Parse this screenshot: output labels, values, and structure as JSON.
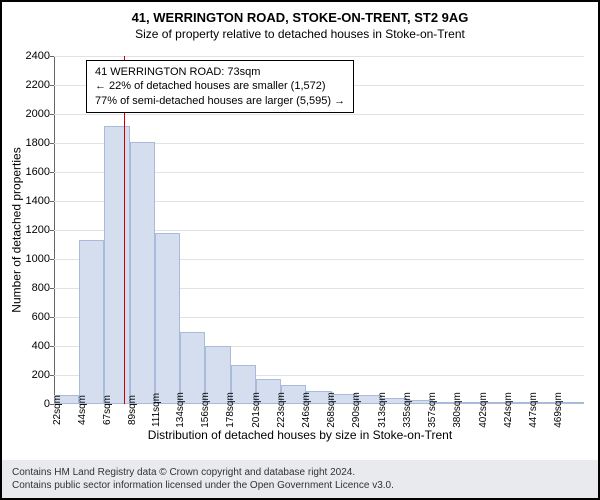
{
  "title_line1": "41, WERRINGTON ROAD, STOKE-ON-TRENT, ST2 9AG",
  "title_line2": "Size of property relative to detached houses in Stoke-on-Trent",
  "xaxis_label": "Distribution of detached houses by size in Stoke-on-Trent",
  "yaxis_label": "Number of detached properties",
  "footer_line1": "Contains HM Land Registry data © Crown copyright and database right 2024.",
  "footer_line2": "Contains public sector information licensed under the Open Government Licence v3.0.",
  "info_lines": [
    "41 WERRINGTON ROAD: 73sqm",
    "← 22% of detached houses are smaller (1,572)",
    "77% of semi-detached houses are larger (5,595) →"
  ],
  "chart": {
    "type": "histogram",
    "ylim": [
      0,
      2400
    ],
    "ytick_step": 200,
    "background_color": "#ffffff",
    "grid_color": "#dfe3e8",
    "bar_fill": "#d5deef",
    "bar_stroke": "#a9bbd9",
    "marker_color": "#cc0000",
    "marker_x": 73,
    "x_start": 11,
    "x_step": 22.35,
    "x_count": 21,
    "x_unit": "sqm",
    "xtick_labels": [
      "22sqm",
      "44sqm",
      "67sqm",
      "89sqm",
      "111sqm",
      "134sqm",
      "156sqm",
      "178sqm",
      "201sqm",
      "223sqm",
      "246sqm",
      "268sqm",
      "290sqm",
      "313sqm",
      "335sqm",
      "357sqm",
      "380sqm",
      "402sqm",
      "424sqm",
      "447sqm",
      "469sqm"
    ],
    "values": [
      60,
      1130,
      1920,
      1810,
      1180,
      500,
      400,
      270,
      170,
      130,
      90,
      70,
      60,
      40,
      30,
      0,
      10,
      0,
      10,
      0,
      10
    ]
  }
}
